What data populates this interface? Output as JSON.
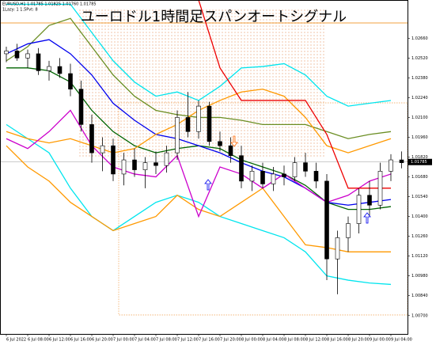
{
  "chart_data": {
    "type": "candlestick",
    "title": "ユーロドル1時間足スパンオートシグナル",
    "symbol_info": "EURUSD,H1 1.01785 1.01825 1.01760 1.01785",
    "indicator_info": "1Lazy: 1 1.5Pvt: 8",
    "current_price": 1.01785,
    "ylim": [
      1.0057,
      1.0293
    ],
    "yticks": [
      {
        "value": 1.0266,
        "label": "1.02660"
      },
      {
        "value": 1.0252,
        "label": "1.02520"
      },
      {
        "value": 1.0238,
        "label": "1.02380"
      },
      {
        "value": 1.0224,
        "label": "1.02240"
      },
      {
        "value": 1.021,
        "label": "1.02100"
      },
      {
        "value": 1.0196,
        "label": "1.01960"
      },
      {
        "value": 1.0182,
        "label": "1.01820"
      },
      {
        "value": 1.0168,
        "label": "1.01680"
      },
      {
        "value": 1.0154,
        "label": "1.01540"
      },
      {
        "value": 1.014,
        "label": "1.01400"
      },
      {
        "value": 1.0126,
        "label": "1.01260"
      },
      {
        "value": 1.0112,
        "label": "1.01120"
      },
      {
        "value": 1.0098,
        "label": "1.00980"
      },
      {
        "value": 1.0084,
        "label": "1.00840"
      },
      {
        "value": 1.007,
        "label": "1.00700"
      }
    ],
    "categories": [
      "6 Jul 2022",
      "6 Jul 08:00",
      "6 Jul 12:00",
      "6 Jul 16:00",
      "6 Jul 20:00",
      "7 Jul 00:00",
      "7 Jul 04:00",
      "7 Jul 08:00",
      "7 Jul 12:00",
      "7 Jul 16:00",
      "7 Jul 20:00",
      "8 Jul 00:00",
      "8 Jul 04:00",
      "8 Jul 08:00",
      "8 Jul 12:00",
      "8 Jul 16:00",
      "8 Jul 20:00",
      "9 Jul 00:00",
      "9 Jul 04:00"
    ],
    "candles": [
      [
        1.0255,
        1.026,
        1.0249,
        1.0257
      ],
      [
        1.0257,
        1.0262,
        1.025,
        1.0252
      ],
      [
        1.0252,
        1.0258,
        1.0245,
        1.0255
      ],
      [
        1.0255,
        1.0259,
        1.024,
        1.0243
      ],
      [
        1.0243,
        1.025,
        1.0236,
        1.0246
      ],
      [
        1.0246,
        1.0252,
        1.0238,
        1.0241
      ],
      [
        1.0241,
        1.0248,
        1.0225,
        1.023
      ],
      [
        1.023,
        1.0236,
        1.02,
        1.0205
      ],
      [
        1.0205,
        1.0212,
        1.0178,
        1.0185
      ],
      [
        1.0185,
        1.0196,
        1.0172,
        1.019
      ],
      [
        1.019,
        1.0195,
        1.0165,
        1.017
      ],
      [
        1.017,
        1.0185,
        1.0162,
        1.018
      ],
      [
        1.018,
        1.0188,
        1.0168,
        1.0173
      ],
      [
        1.0173,
        1.0182,
        1.016,
        1.0178
      ],
      [
        1.0178,
        1.0186,
        1.017,
        1.0176
      ],
      [
        1.0176,
        1.019,
        1.0171,
        1.0185
      ],
      [
        1.0185,
        1.0215,
        1.018,
        1.021
      ],
      [
        1.021,
        1.0228,
        1.0196,
        1.02
      ],
      [
        1.02,
        1.0222,
        1.0195,
        1.0218
      ],
      [
        1.0218,
        1.0221,
        1.019,
        1.0193
      ],
      [
        1.0193,
        1.02,
        1.0186,
        1.019
      ],
      [
        1.019,
        1.0196,
        1.0178,
        1.0183
      ],
      [
        1.0183,
        1.019,
        1.016,
        1.0165
      ],
      [
        1.0165,
        1.0176,
        1.0158,
        1.0172
      ],
      [
        1.0172,
        1.0178,
        1.016,
        1.0163
      ],
      [
        1.0163,
        1.0175,
        1.0158,
        1.017
      ],
      [
        1.017,
        1.0176,
        1.0162,
        1.0168
      ],
      [
        1.0168,
        1.0182,
        1.0165,
        1.0178
      ],
      [
        1.0178,
        1.0185,
        1.0168,
        1.0172
      ],
      [
        1.0172,
        1.0178,
        1.016,
        1.0165
      ],
      [
        1.0165,
        1.017,
        1.0095,
        1.011
      ],
      [
        1.011,
        1.013,
        1.0085,
        1.0125
      ],
      [
        1.0125,
        1.014,
        1.0115,
        1.0135
      ],
      [
        1.0135,
        1.016,
        1.0128,
        1.0155
      ],
      [
        1.0155,
        1.0165,
        1.014,
        1.0148
      ],
      [
        1.0148,
        1.0178,
        1.0145,
        1.0172
      ],
      [
        1.0172,
        1.0184,
        1.0165,
        1.018
      ],
      [
        1.018,
        1.0186,
        1.0174,
        1.0178
      ]
    ],
    "series": [
      {
        "color": "#00e5ee",
        "values": [
          1.029,
          1.029,
          1.029,
          1.029,
          1.027,
          1.025,
          1.0235,
          1.0225,
          1.0228,
          1.0222,
          1.0232,
          1.0245,
          1.0246,
          1.0248,
          1.024,
          1.0225,
          1.0218,
          1.022,
          1.0222
        ]
      },
      {
        "color": "#00e5ee",
        "values": [
          1.0205,
          1.0195,
          1.0185,
          1.016,
          1.014,
          1.013,
          1.014,
          1.015,
          1.0155,
          1.015,
          1.014,
          1.0135,
          1.013,
          1.0125,
          1.0115,
          1.0098,
          1.0095,
          1.0093,
          1.0092
        ]
      },
      {
        "color": "#6b8e23",
        "values": [
          1.025,
          1.026,
          1.0275,
          1.028,
          1.026,
          1.024,
          1.0225,
          1.0215,
          1.0212,
          1.021,
          1.021,
          1.0208,
          1.0205,
          1.0205,
          1.0205,
          1.02,
          1.0195,
          1.0198,
          1.02
        ]
      },
      {
        "color": "#006400",
        "values": [
          1.0245,
          1.0245,
          1.0243,
          1.0235,
          1.0215,
          1.02,
          1.019,
          1.0185,
          1.0188,
          1.019,
          1.0188,
          1.018,
          1.0175,
          1.017,
          1.0162,
          1.015,
          1.0145,
          1.0145,
          1.0147
        ]
      },
      {
        "color": "#0000ee",
        "values": [
          1.0255,
          1.0262,
          1.0265,
          1.0255,
          1.024,
          1.022,
          1.0208,
          1.0198,
          1.0195,
          1.019,
          1.0185,
          1.0178,
          1.0172,
          1.0168,
          1.016,
          1.015,
          1.0148,
          1.015,
          1.0152
        ]
      },
      {
        "color": "#ff9900",
        "values": [
          1.02,
          1.0195,
          1.0192,
          1.0195,
          1.019,
          1.0185,
          1.0188,
          1.0198,
          1.0205,
          1.0215,
          1.0222,
          1.0228,
          1.023,
          1.0225,
          1.021,
          1.019,
          1.0185,
          1.019,
          1.0195
        ]
      },
      {
        "color": "#ff9900",
        "values": [
          1.019,
          1.0175,
          1.0165,
          1.015,
          1.014,
          1.013,
          1.0135,
          1.014,
          1.0155,
          1.0145,
          1.014,
          1.015,
          1.016,
          1.014,
          1.012,
          1.0118,
          1.0115,
          1.0115,
          1.0115
        ]
      },
      {
        "color": "#cc00cc",
        "values": [
          1.0195,
          1.0188,
          1.02,
          1.0215,
          1.019,
          1.0175,
          1.017,
          1.0168,
          1.0183,
          1.014,
          1.0175,
          1.017,
          1.016,
          1.017,
          1.016,
          1.015,
          1.0155,
          1.0165,
          1.017
        ]
      },
      {
        "color": "#ee0000",
        "values": [
          null,
          null,
          null,
          null,
          null,
          null,
          null,
          null,
          null,
          1.0293,
          1.0245,
          1.0222,
          1.0222,
          1.0222,
          1.0222,
          1.0198,
          1.016,
          1.016,
          1.016
        ]
      }
    ]
  }
}
